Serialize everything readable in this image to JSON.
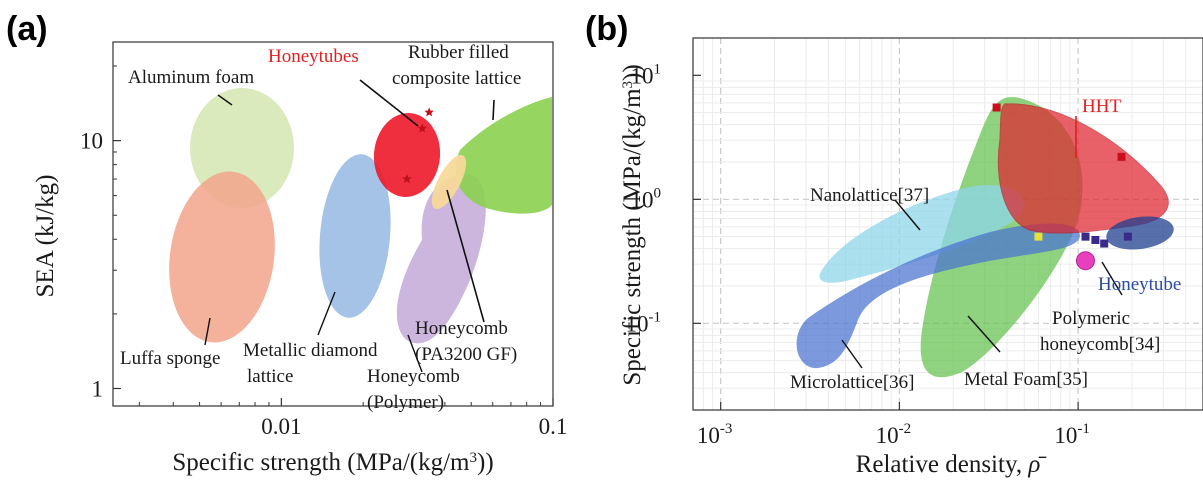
{
  "chart_data": [
    {
      "panel_label": "(a)",
      "type": "scatter",
      "xlabel": "Specific strength (MPa/(kg/m³))",
      "ylabel": "SEA (kJ/kg)",
      "xscale": "log",
      "yscale": "log",
      "xlim": [
        0.0024,
        0.1
      ],
      "ylim": [
        0.85,
        25
      ],
      "xticks": [
        {
          "value": 0.01,
          "label": "0.01"
        },
        {
          "value": 0.1,
          "label": "0.1"
        }
      ],
      "yticks": [
        {
          "value": 1,
          "label": "1"
        },
        {
          "value": 10,
          "label": "10"
        }
      ],
      "grid": false,
      "regions": [
        {
          "name": "Aluminum foam",
          "color": "#d4e6b0",
          "x_range": [
            0.0043,
            0.0085
          ],
          "y_range": [
            5.8,
            18
          ],
          "label_color": "#1a1a1a"
        },
        {
          "name": "Luffa sponge",
          "color": "#f2a48c",
          "x_range": [
            0.0036,
            0.0075
          ],
          "y_range": [
            1.65,
            7.5
          ],
          "label_color": "#1a1a1a"
        },
        {
          "name": "Metallic diamond lattice",
          "color": "#9bbde3",
          "x_range": [
            0.012,
            0.021
          ],
          "y_range": [
            2.1,
            9.5
          ],
          "label_color": "#1a1a1a"
        },
        {
          "name": "Honeycomb (Polymer)",
          "color": "#c3a9d8",
          "x_range": [
            0.02,
            0.046
          ],
          "y_range": [
            2.1,
            8.2
          ],
          "label_color": "#1a1a1a"
        },
        {
          "name": "Honeytubes",
          "color": "#ee1c2e",
          "x_range": [
            0.022,
            0.04
          ],
          "y_range": [
            6.4,
            15
          ],
          "label_color": "#e02020"
        },
        {
          "name": "Honeycomb (PA3200 GF)",
          "color": "#f7d99a",
          "x_range": [
            0.035,
            0.042
          ],
          "y_range": [
            6,
            9.5
          ],
          "label_color": "#1a1a1a"
        },
        {
          "name": "Rubber filled composite lattice",
          "color": "#8cd050",
          "x_range": [
            0.042,
            0.1
          ],
          "y_range": [
            6,
            17
          ],
          "label_color": "#1a1a1a"
        }
      ],
      "points": [
        {
          "series": "Honeytubes",
          "x": 0.035,
          "y": 13
        },
        {
          "series": "Honeytubes",
          "x": 0.033,
          "y": 11.2
        },
        {
          "series": "Honeytubes",
          "x": 0.029,
          "y": 7
        }
      ]
    },
    {
      "panel_label": "(b)",
      "type": "scatter",
      "xlabel": "Relative density, ρ̄",
      "ylabel": "Specific strength (MPa/(kg/m³))",
      "xscale": "log",
      "yscale": "log",
      "xlim": [
        0.0007,
        0.5
      ],
      "ylim": [
        0.02,
        20
      ],
      "xticks": [
        {
          "value": 0.001,
          "label": "10",
          "exp": "-3"
        },
        {
          "value": 0.01,
          "label": "10",
          "exp": "-2"
        },
        {
          "value": 0.1,
          "label": "10",
          "exp": "-1"
        }
      ],
      "yticks": [
        {
          "value": 0.1,
          "label": "10",
          "exp": "-1"
        },
        {
          "value": 1,
          "label": "10",
          "exp": "0"
        },
        {
          "value": 10,
          "label": "10",
          "exp": "1"
        }
      ],
      "grid": true,
      "regions": [
        {
          "name": "Metal Foam[35]",
          "color": "#5fc04a",
          "label_color": "#1a1a1a"
        },
        {
          "name": "Nanolattice[37]",
          "color": "#8fd6ea",
          "label_color": "#1a1a1a"
        },
        {
          "name": "Microlattice[36]",
          "color": "#4a72d0",
          "label_color": "#1a1a1a"
        },
        {
          "name": "HHT",
          "color": "#e02530",
          "label_color": "#e02020"
        },
        {
          "name": "Honeytube",
          "color": "#1f3f8f",
          "label_color": "#2b4aa5"
        },
        {
          "name": "Polymeric honeycomb[34]",
          "color": "#e83fbf",
          "x": 0.11,
          "y": 0.32,
          "label_color": "#1a1a1a"
        }
      ],
      "points": [
        {
          "series": "HHT",
          "x": 0.035,
          "y": 5.5
        },
        {
          "series": "HHT",
          "x": 0.175,
          "y": 2.2
        },
        {
          "series": "Honeytube",
          "x": 0.11,
          "y": 0.5
        },
        {
          "series": "Honeytube",
          "x": 0.125,
          "y": 0.47
        },
        {
          "series": "Honeytube",
          "x": 0.14,
          "y": 0.44
        },
        {
          "series": "Honeytube",
          "x": 0.19,
          "y": 0.5
        },
        {
          "series": "Metal Foam[35]",
          "x": 0.06,
          "y": 0.5
        }
      ]
    }
  ]
}
